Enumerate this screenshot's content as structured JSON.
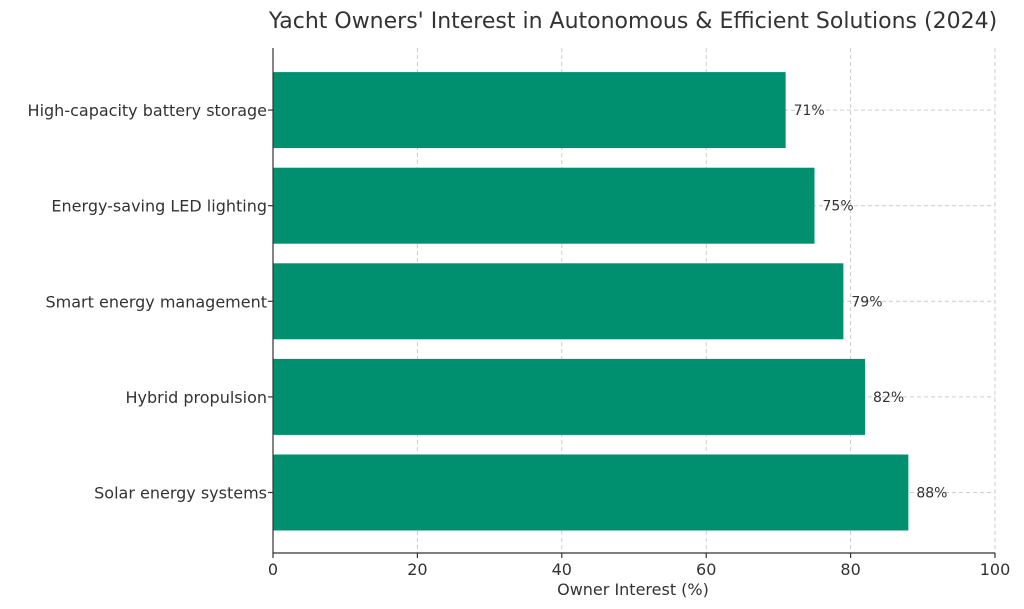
{
  "chart_data": {
    "type": "bar",
    "orientation": "horizontal",
    "title": "Yacht Owners' Interest in Autonomous & Efficient Solutions (2024)",
    "xlabel": "Owner Interest (%)",
    "ylabel": "",
    "categories": [
      "Solar energy systems",
      "Hybrid propulsion",
      "Smart energy management",
      "Energy-saving LED lighting",
      "High-capacity battery storage"
    ],
    "values": [
      88,
      82,
      79,
      75,
      71
    ],
    "data_labels": [
      "88%",
      "82%",
      "79%",
      "75%",
      "71%"
    ],
    "xlim": [
      0,
      100
    ],
    "xticks": [
      0,
      20,
      40,
      60,
      80,
      100
    ],
    "grid": true,
    "bar_color": "#009070"
  }
}
